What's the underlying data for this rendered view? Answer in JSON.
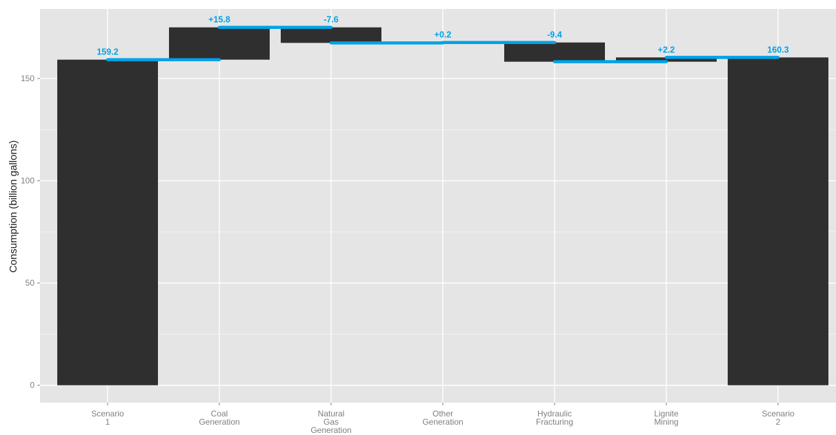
{
  "chart_data": {
    "type": "bar",
    "subtype": "waterfall",
    "categories": [
      [
        "Scenario",
        "1"
      ],
      [
        "Coal",
        "Generation"
      ],
      [
        "Natural",
        "Gas",
        "Generation"
      ],
      [
        "Other",
        "Generation"
      ],
      [
        "Hydraulic",
        "Fracturing"
      ],
      [
        "Lignite",
        "Mining"
      ],
      [
        "Scenario",
        "2"
      ]
    ],
    "bars": [
      {
        "start": 0,
        "end": 159.2
      },
      {
        "start": 159.2,
        "end": 175.0
      },
      {
        "start": 175.0,
        "end": 167.4
      },
      {
        "start": 167.4,
        "end": 167.6
      },
      {
        "start": 167.6,
        "end": 158.2
      },
      {
        "start": 158.2,
        "end": 160.3
      },
      {
        "start": 0,
        "end": 160.3
      }
    ],
    "labels": [
      "159.2",
      "+15.8",
      "-7.6",
      "+0.2",
      "-9.4",
      "+2.2",
      "160.3"
    ],
    "title": "",
    "xlabel": "",
    "ylabel": "Consumption (billion gallons)",
    "ylim": [
      -8.5,
      184
    ],
    "yticks": [
      0,
      50,
      100,
      150
    ],
    "grid": true,
    "colors": {
      "panel_bg": "#e5e5e5",
      "grid_major": "#ffffff",
      "grid_minor": "#f2f2f2",
      "bar_fill": "#2f2f2f",
      "connector": "#00a2e8",
      "label_color": "#00a2e8"
    }
  }
}
